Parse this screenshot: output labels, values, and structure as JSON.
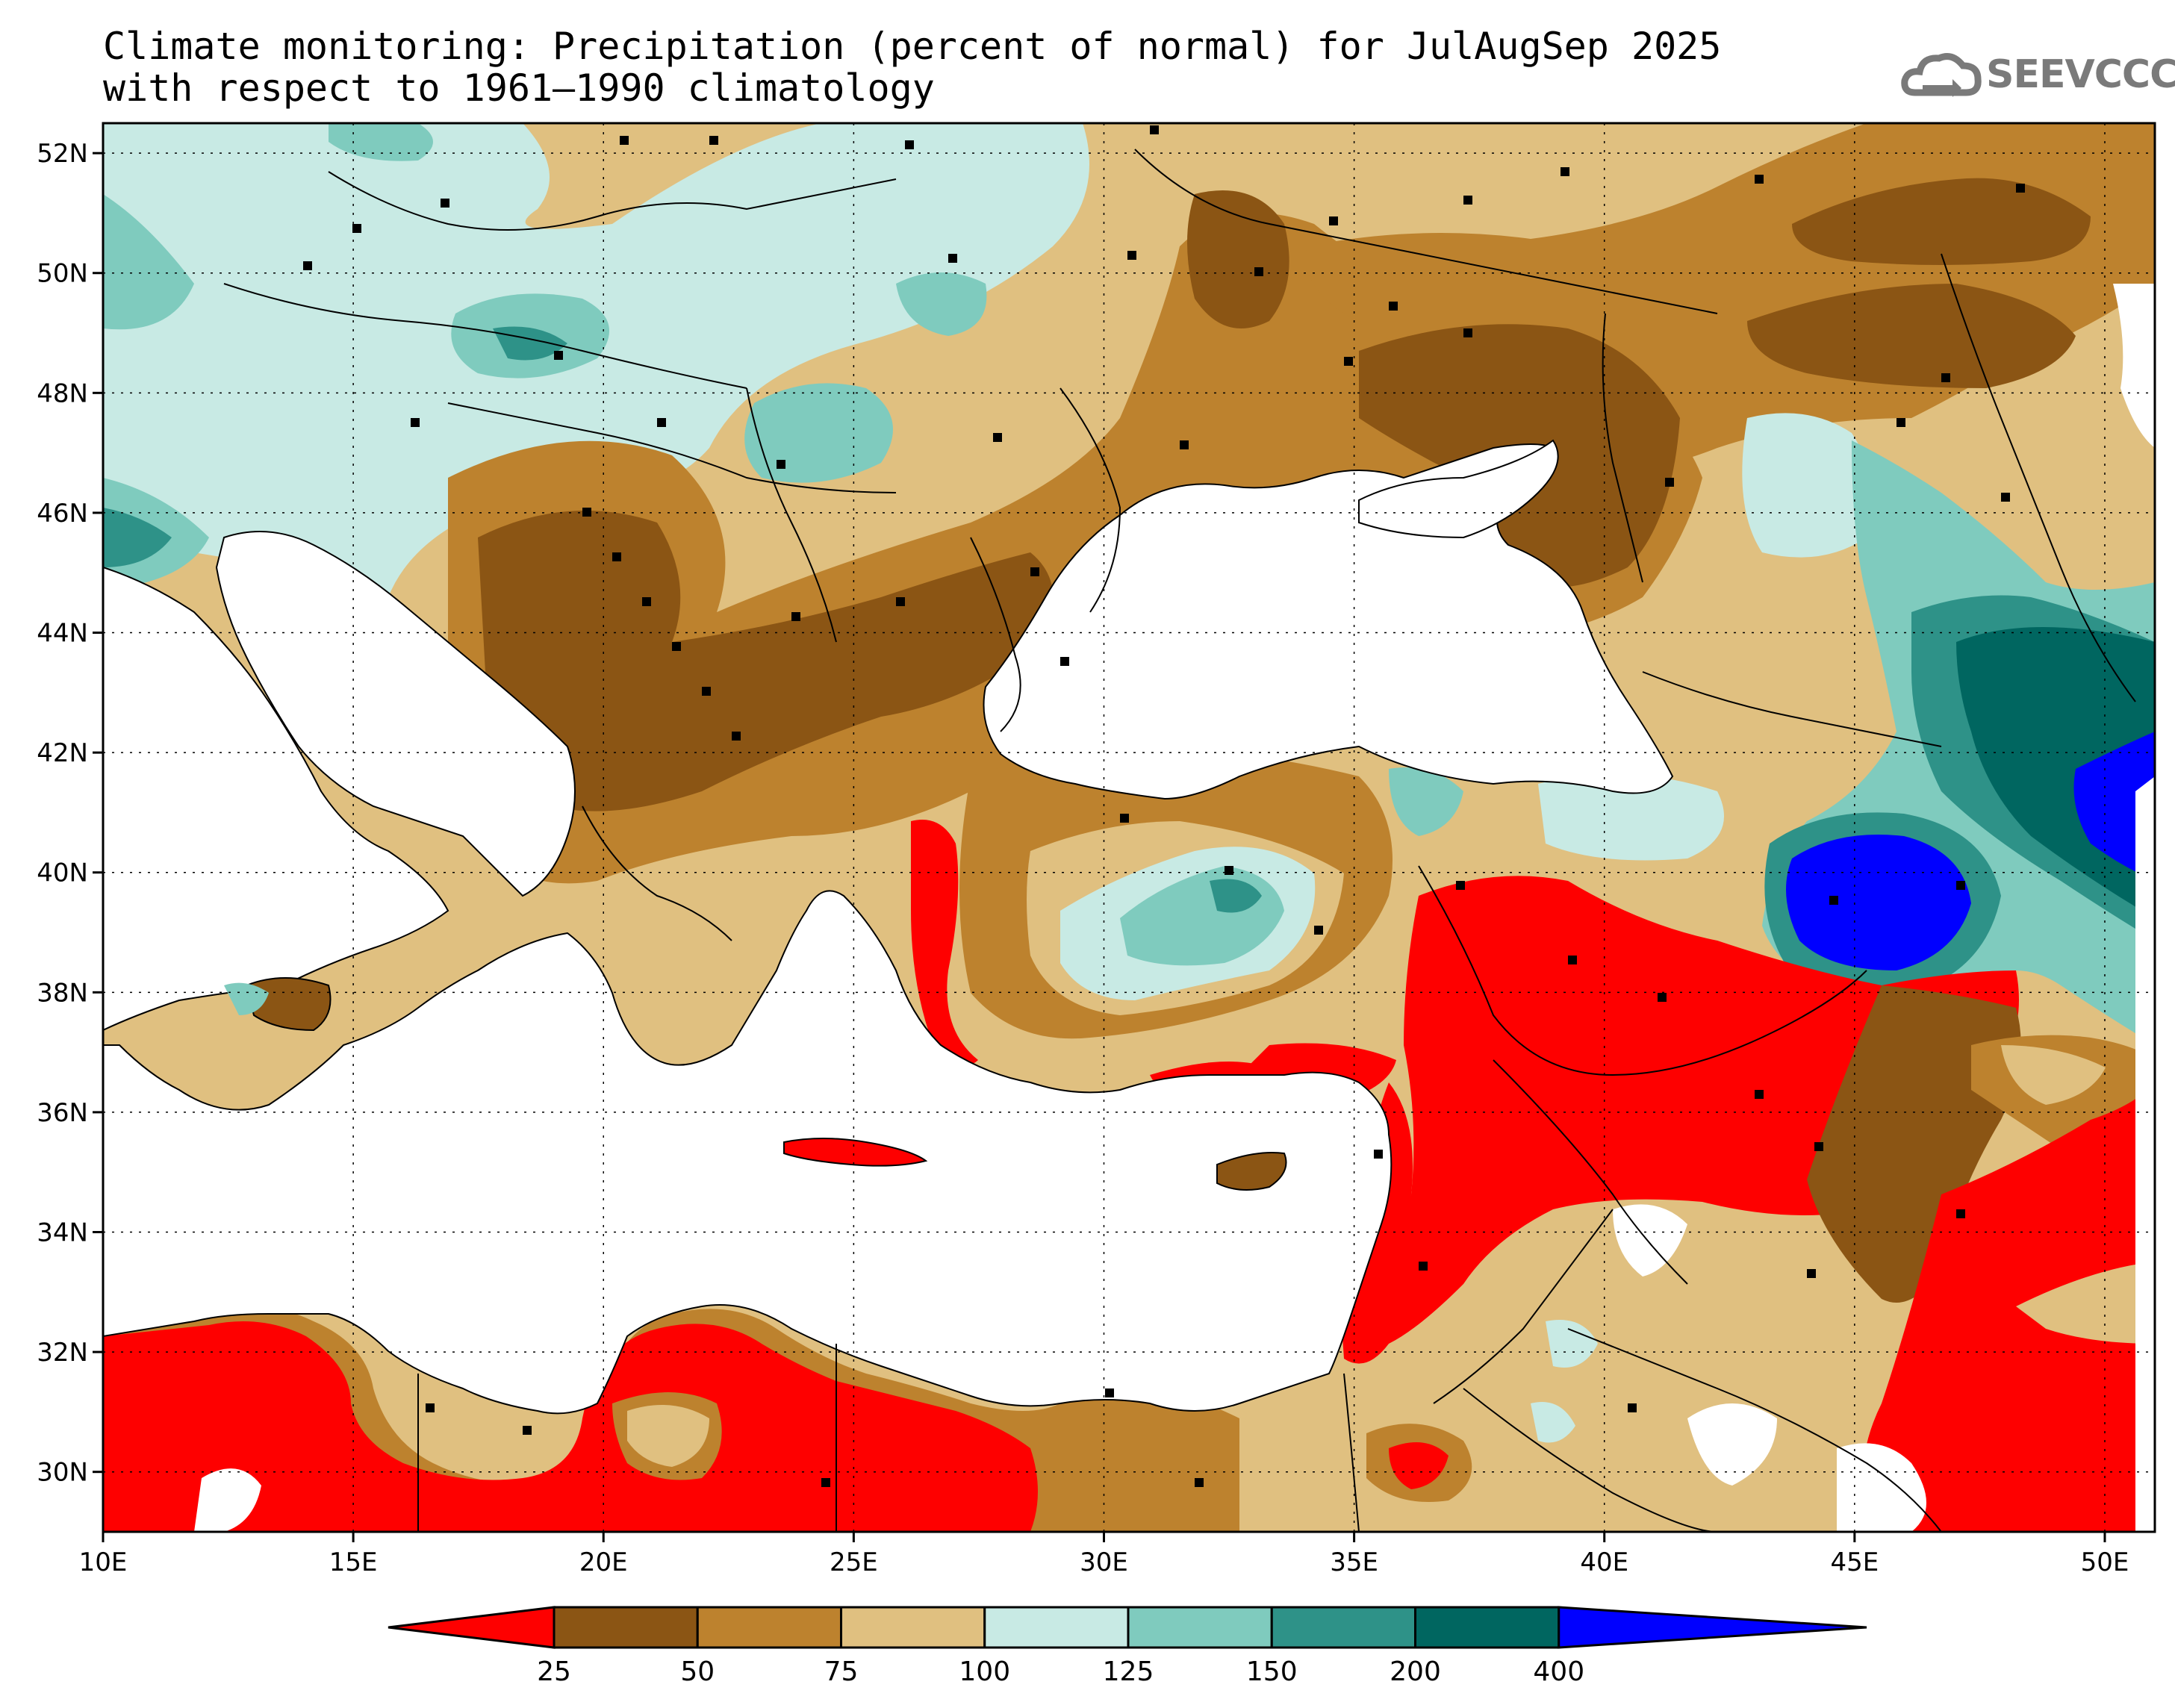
{
  "title": {
    "line1": "Climate monitoring: Precipitation (percent of normal) for JulAugSep 2025",
    "line2": "with respect to 1961–1990 climatology"
  },
  "logo": {
    "text": "SEEVCCC",
    "icon": "cloud-icon"
  },
  "map": {
    "lon_range": [
      10,
      51
    ],
    "lat_range": [
      29,
      52.5
    ],
    "lon_ticks": [
      "10E",
      "15E",
      "20E",
      "25E",
      "30E",
      "35E",
      "40E",
      "45E",
      "50E"
    ],
    "lat_ticks": [
      "52N",
      "50N",
      "48N",
      "46N",
      "44N",
      "42N",
      "40N",
      "38N",
      "36N",
      "34N",
      "32N",
      "30N"
    ],
    "grid": true
  },
  "legend": {
    "labels": [
      "25",
      "50",
      "75",
      "100",
      "125",
      "150",
      "200",
      "400"
    ],
    "colors": [
      "#fe0000",
      "#8b5514",
      "#bd822e",
      "#e0c080",
      "#c8eae4",
      "#7fcbbe",
      "#2e9288",
      "#006660",
      "#0000ff"
    ]
  }
}
